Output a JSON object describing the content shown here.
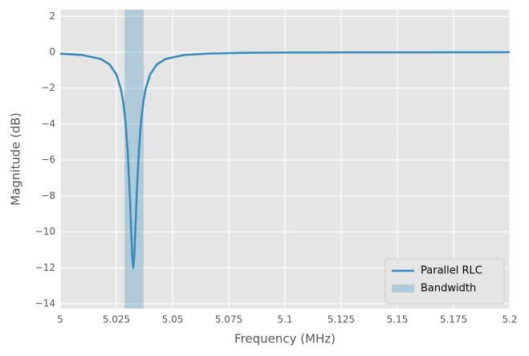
{
  "chart_data": {
    "type": "line",
    "xlabel": "Frequency (MHz)",
    "ylabel": "Magnitude (dB)",
    "x": [
      5.0,
      5.01,
      5.018,
      5.022,
      5.025,
      5.027,
      5.028,
      5.029,
      5.03,
      5.031,
      5.032,
      5.0325,
      5.033,
      5.034,
      5.035,
      5.036,
      5.037,
      5.038,
      5.04,
      5.043,
      5.047,
      5.055,
      5.065,
      5.08,
      5.1,
      5.13,
      5.16,
      5.2
    ],
    "series": [
      {
        "name": "Parallel RLC",
        "color": "#348abd",
        "values": [
          -0.077,
          -0.159,
          -0.373,
          -0.683,
          -1.24,
          -2.05,
          -2.74,
          -3.81,
          -5.46,
          -8.05,
          -11.28,
          -12.0,
          -11.28,
          -8.05,
          -5.46,
          -3.81,
          -2.74,
          -2.05,
          -1.24,
          -0.68,
          -0.37,
          -0.16,
          -0.08,
          -0.036,
          -0.018,
          -0.008,
          -0.005,
          -0.003
        ]
      }
    ],
    "span": {
      "name": "Bandwidth",
      "color": "#348abd",
      "opacity": 0.3,
      "xrange": [
        5.0286,
        5.0371
      ]
    },
    "xlim": [
      5.0,
      5.2
    ],
    "xticks": [
      5,
      5.025,
      5.05,
      5.075,
      5.1,
      5.125,
      5.15,
      5.175,
      5.2
    ],
    "ylim": [
      -14.27,
      2.37
    ],
    "yticks": [
      {
        "value": -14,
        "label": "−14"
      },
      {
        "value": -12,
        "label": "−12"
      },
      {
        "value": -10,
        "label": "−10"
      },
      {
        "value": -8,
        "label": "−8"
      },
      {
        "value": -6,
        "label": "−6"
      },
      {
        "value": -4,
        "label": "−4"
      },
      {
        "value": -2,
        "label": "−2"
      },
      0,
      2
    ],
    "grid": true,
    "legend": "lower right"
  }
}
